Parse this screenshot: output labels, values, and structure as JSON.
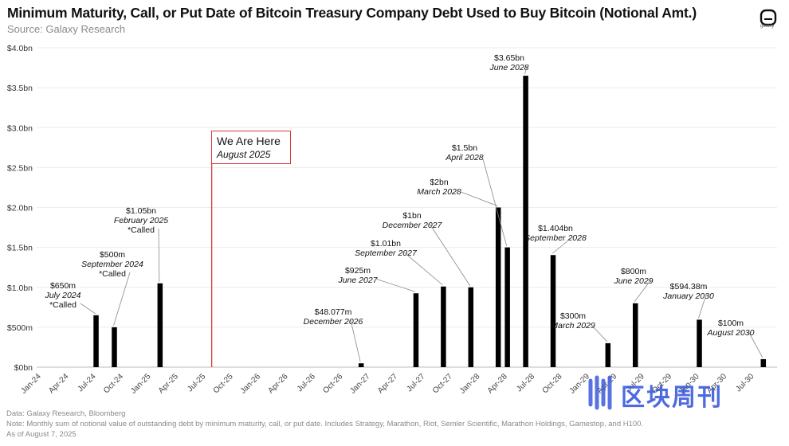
{
  "title": "Minimum Maturity, Call, or Put Date of Bitcoin Treasury Company Debt Used to Buy Bitcoin (Notional Amt.)",
  "subtitle": "Source: Galaxy Research",
  "logo_text": "galaxy",
  "marker": {
    "line1": "We Are Here",
    "line2": "August 2025",
    "color": "#d63a3a"
  },
  "footnotes": [
    "Data: Galaxy Research, Bloomberg",
    "Note: Monthly sum of notional value of outstanding debt by minimum maturity, call, or put date. Includes Strategy, Marathon, Riot, Semler Scientific, Marathon Holdings, Gamestop, and H100.",
    "As of August 7, 2025"
  ],
  "watermark": "区块周刊",
  "chart_data": {
    "type": "bar",
    "title": "Minimum Maturity, Call, or Put Date of Bitcoin Treasury Company Debt Used to Buy Bitcoin (Notional Amt.)",
    "ylim": [
      0,
      4.0
    ],
    "yticks": [
      0,
      0.5,
      1.0,
      1.5,
      2.0,
      2.5,
      3.0,
      3.5,
      4.0
    ],
    "ytick_labels": [
      "$0bn",
      "$500m",
      "$1.0bn",
      "$1.5bn",
      "$2.0bn",
      "$2.5bn",
      "$3.0bn",
      "$3.5bn",
      "$4.0bn"
    ],
    "x_start": "2024-01",
    "x_end": "2030-09",
    "xtick_labels": [
      "Jan-24",
      "Apr-24",
      "Jul-24",
      "Oct-24",
      "Jan-25",
      "Apr-25",
      "Jul-25",
      "Oct-25",
      "Jan-26",
      "Apr-26",
      "Jul-26",
      "Oct-26",
      "Jan-27",
      "Apr-27",
      "Jul-27",
      "Oct-27",
      "Jan-28",
      "Apr-28",
      "Jul-28",
      "Oct-28",
      "Jan-29",
      "Apr-29",
      "Jul-29",
      "Oct-29",
      "Jan-30",
      "Apr-30",
      "Jul-30"
    ],
    "grid": true,
    "bar_color": "#000000",
    "bars": [
      {
        "x": "2024-07",
        "value": 0.65,
        "label": [
          "$650m",
          "July 2024",
          "*Called"
        ]
      },
      {
        "x": "2024-09",
        "value": 0.5,
        "label": [
          "$500m",
          "September 2024",
          "*Called"
        ]
      },
      {
        "x": "2025-02",
        "value": 1.05,
        "label": [
          "$1.05bn",
          "February 2025",
          "*Called"
        ]
      },
      {
        "x": "2026-12",
        "value": 0.048077,
        "label": [
          "$48.077m",
          "December 2026"
        ]
      },
      {
        "x": "2027-06",
        "value": 0.925,
        "label": [
          "$925m",
          "June 2027"
        ]
      },
      {
        "x": "2027-09",
        "value": 1.01,
        "label": [
          "$1.01bn",
          "September 2027"
        ]
      },
      {
        "x": "2027-12",
        "value": 1.0,
        "label": [
          "$1bn",
          "December 2027"
        ]
      },
      {
        "x": "2028-03",
        "value": 2.0,
        "label": [
          "$2bn",
          "March 2028"
        ]
      },
      {
        "x": "2028-04",
        "value": 1.5,
        "label": [
          "$1.5bn",
          "April 2028"
        ]
      },
      {
        "x": "2028-06",
        "value": 3.65,
        "label": [
          "$3.65bn",
          "June 2028"
        ]
      },
      {
        "x": "2028-09",
        "value": 1.404,
        "label": [
          "$1.404bn",
          "September 2028"
        ]
      },
      {
        "x": "2029-03",
        "value": 0.3,
        "label": [
          "$300m",
          "March 2029"
        ]
      },
      {
        "x": "2029-06",
        "value": 0.8,
        "label": [
          "$800m",
          "June 2029"
        ]
      },
      {
        "x": "2030-01",
        "value": 0.59438,
        "label": [
          "$594.38m",
          "January 2030"
        ]
      },
      {
        "x": "2030-08",
        "value": 0.1,
        "label": [
          "$100m",
          "August 2030"
        ]
      }
    ],
    "marker_x": "2025-08"
  }
}
